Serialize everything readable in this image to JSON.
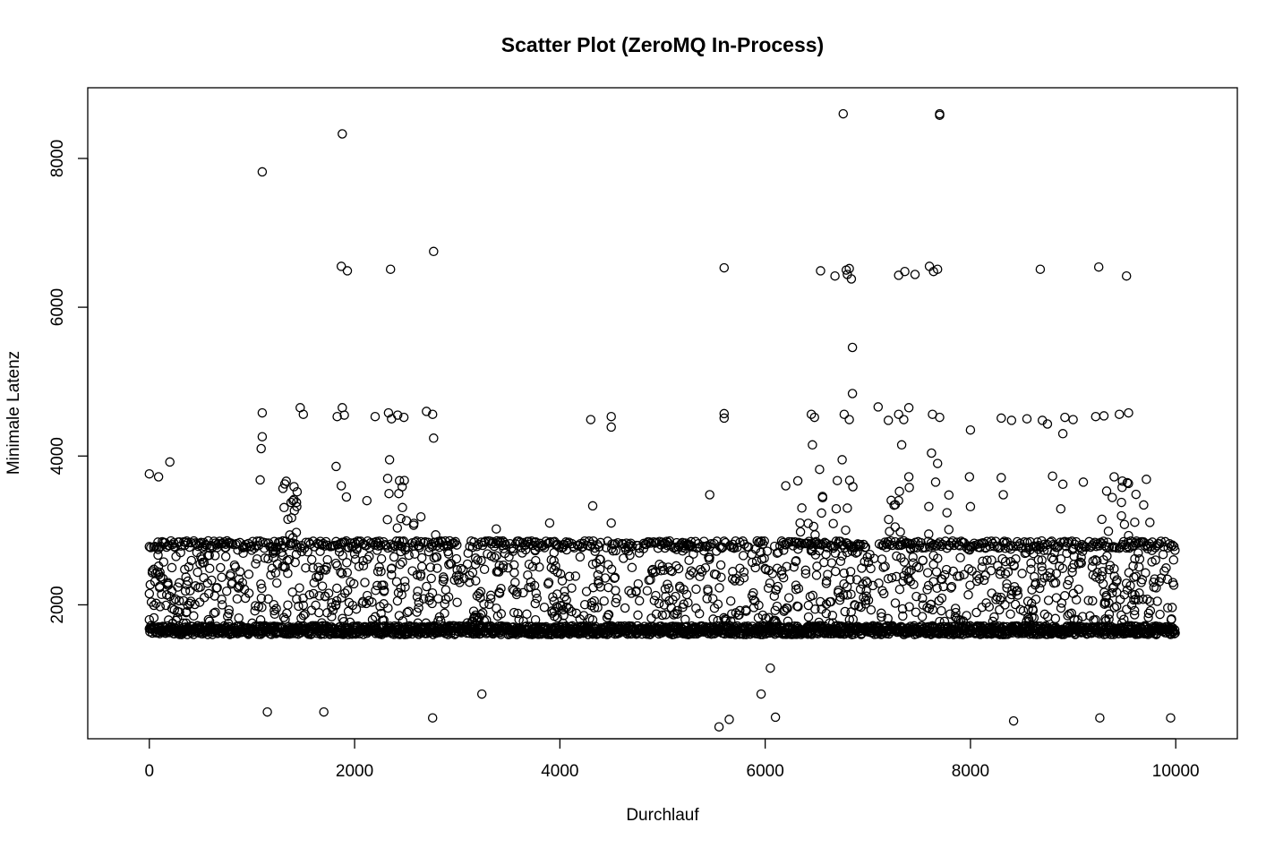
{
  "chart_data": {
    "type": "scatter",
    "title": "Scatter Plot (ZeroMQ In-Process)",
    "xlabel": "Durchlauf",
    "ylabel": "Minimale Latenz",
    "xlim": [
      -600,
      10600
    ],
    "ylim": [
      200,
      8950
    ],
    "xticks": [
      0,
      2000,
      4000,
      6000,
      8000,
      10000
    ],
    "yticks": [
      2000,
      4000,
      6000,
      8000
    ],
    "x_tick_labels": [
      "0",
      "2000",
      "4000",
      "6000",
      "8000",
      "10000"
    ],
    "y_tick_labels": [
      "2000",
      "4000",
      "6000",
      "8000"
    ],
    "grid": false,
    "marker": "open-circle",
    "color": "#000000",
    "n_runs": 10000,
    "baseline_band": [
      1600,
      1720
    ],
    "secondary_band": [
      2760,
      2860
    ],
    "outliers": [
      [
        0,
        3760
      ],
      [
        90,
        3720
      ],
      [
        200,
        3920
      ],
      [
        0,
        1800
      ],
      [
        0,
        2150
      ],
      [
        60,
        2420
      ],
      [
        120,
        2140
      ],
      [
        180,
        2300
      ],
      [
        220,
        2500
      ],
      [
        260,
        2650
      ],
      [
        1100,
        7820
      ],
      [
        1100,
        4580
      ],
      [
        1100,
        4260
      ],
      [
        1090,
        4100
      ],
      [
        1080,
        3680
      ],
      [
        1150,
        560
      ],
      [
        1880,
        8330
      ],
      [
        1870,
        6550
      ],
      [
        1930,
        6490
      ],
      [
        1880,
        4650
      ],
      [
        1900,
        4550
      ],
      [
        1830,
        4530
      ],
      [
        1870,
        3600
      ],
      [
        1920,
        3450
      ],
      [
        1820,
        3860
      ],
      [
        1470,
        4650
      ],
      [
        1500,
        4560
      ],
      [
        1350,
        3150
      ],
      [
        1400,
        3400
      ],
      [
        1440,
        3520
      ],
      [
        1700,
        560
      ],
      [
        1600,
        2150
      ],
      [
        2350,
        6510
      ],
      [
        2330,
        4580
      ],
      [
        2360,
        4500
      ],
      [
        2420,
        4550
      ],
      [
        2480,
        4520
      ],
      [
        2340,
        3950
      ],
      [
        2450,
        3160
      ],
      [
        2200,
        4530
      ],
      [
        2120,
        3400
      ],
      [
        2770,
        6750
      ],
      [
        2760,
        4560
      ],
      [
        2700,
        4600
      ],
      [
        2770,
        4240
      ],
      [
        2760,
        480
      ],
      [
        3240,
        800
      ],
      [
        3380,
        3020
      ],
      [
        3900,
        3100
      ],
      [
        4300,
        4490
      ],
      [
        4320,
        3330
      ],
      [
        4500,
        4530
      ],
      [
        4500,
        4390
      ],
      [
        4500,
        3100
      ],
      [
        5600,
        6530
      ],
      [
        5600,
        4570
      ],
      [
        5600,
        4510
      ],
      [
        5460,
        3480
      ],
      [
        5550,
        360
      ],
      [
        5650,
        460
      ],
      [
        6050,
        1150
      ],
      [
        5960,
        800
      ],
      [
        6100,
        490
      ],
      [
        6200,
        3600
      ],
      [
        6340,
        3100
      ],
      [
        6760,
        8600
      ],
      [
        6790,
        6500
      ],
      [
        6800,
        6440
      ],
      [
        6820,
        6520
      ],
      [
        6840,
        6380
      ],
      [
        6850,
        5460
      ],
      [
        6850,
        4840
      ],
      [
        6770,
        4560
      ],
      [
        6820,
        4490
      ],
      [
        6750,
        3950
      ],
      [
        6540,
        6490
      ],
      [
        6680,
        6420
      ],
      [
        6450,
        4560
      ],
      [
        6480,
        4520
      ],
      [
        6460,
        4150
      ],
      [
        6530,
        3820
      ],
      [
        6560,
        3440
      ],
      [
        6800,
        3300
      ],
      [
        7100,
        4660
      ],
      [
        7200,
        4480
      ],
      [
        7300,
        4560
      ],
      [
        7350,
        4490
      ],
      [
        7400,
        4650
      ],
      [
        7330,
        4150
      ],
      [
        7400,
        3720
      ],
      [
        7300,
        3400
      ],
      [
        7300,
        6430
      ],
      [
        7360,
        6480
      ],
      [
        7460,
        6440
      ],
      [
        7600,
        6550
      ],
      [
        7640,
        6480
      ],
      [
        7680,
        6510
      ],
      [
        7630,
        4560
      ],
      [
        7700,
        4520
      ],
      [
        7620,
        4040
      ],
      [
        7680,
        3900
      ],
      [
        7660,
        3650
      ],
      [
        7700,
        8580
      ],
      [
        7700,
        8600
      ],
      [
        7990,
        3720
      ],
      [
        8000,
        4350
      ],
      [
        8000,
        3320
      ],
      [
        8300,
        4510
      ],
      [
        8300,
        3710
      ],
      [
        8320,
        3480
      ],
      [
        8400,
        4480
      ],
      [
        8550,
        4500
      ],
      [
        8420,
        440
      ],
      [
        8680,
        6510
      ],
      [
        8700,
        4480
      ],
      [
        8750,
        4430
      ],
      [
        8800,
        3730
      ],
      [
        8900,
        3620
      ],
      [
        8880,
        3290
      ],
      [
        8900,
        4300
      ],
      [
        8920,
        4520
      ],
      [
        9000,
        4490
      ],
      [
        9100,
        3650
      ],
      [
        9250,
        6540
      ],
      [
        9220,
        4530
      ],
      [
        9300,
        4540
      ],
      [
        9280,
        3150
      ],
      [
        9400,
        3720
      ],
      [
        9260,
        480
      ],
      [
        9520,
        6420
      ],
      [
        9450,
        4560
      ],
      [
        9540,
        4580
      ],
      [
        9500,
        3080
      ],
      [
        9600,
        3110
      ],
      [
        9950,
        480
      ]
    ]
  }
}
